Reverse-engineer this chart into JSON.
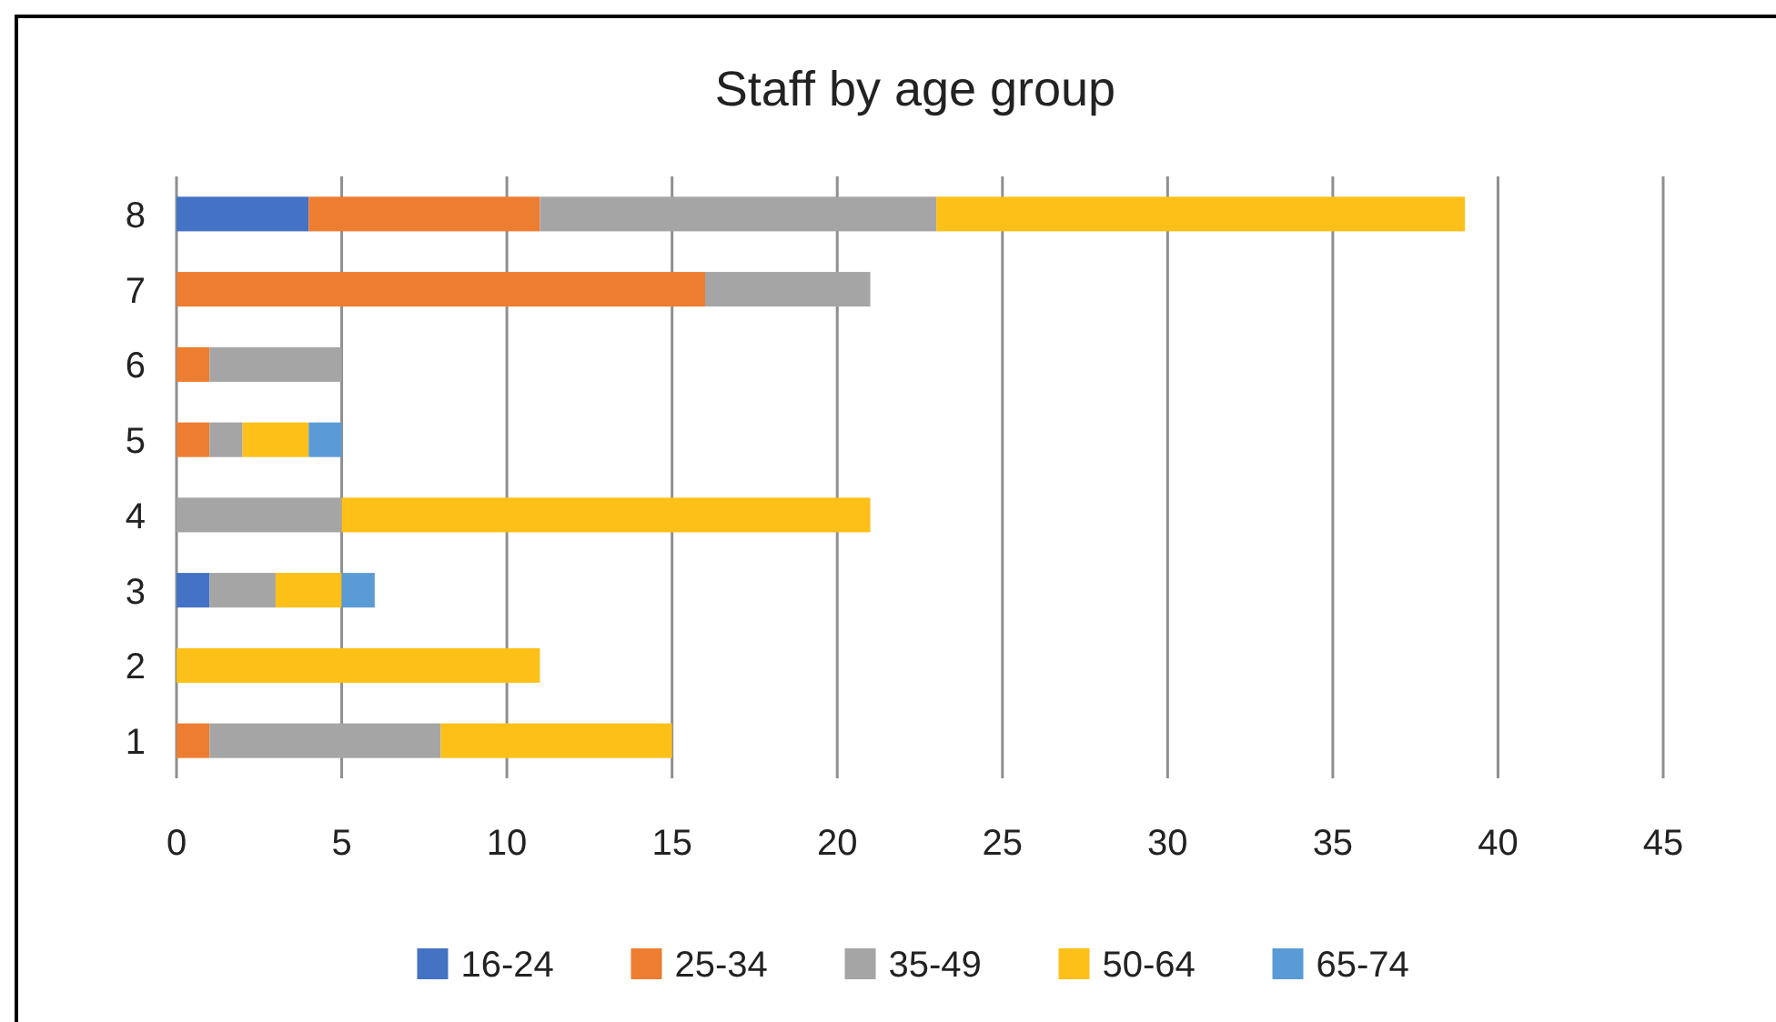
{
  "chart_data": {
    "type": "bar",
    "orientation": "horizontal",
    "stacked": true,
    "title": "Staff by age group",
    "categories": [
      "8",
      "7",
      "6",
      "5",
      "4",
      "3",
      "2",
      "1"
    ],
    "series": [
      {
        "name": "16-24",
        "color": "#4472c4",
        "values": [
          4,
          0,
          0,
          0,
          0,
          1,
          0,
          0
        ]
      },
      {
        "name": "25-34",
        "color": "#ed7d31",
        "values": [
          7,
          16,
          1,
          1,
          0,
          0,
          0,
          1
        ]
      },
      {
        "name": "35-49",
        "color": "#a5a5a5",
        "values": [
          12,
          5,
          4,
          1,
          5,
          2,
          0,
          7
        ]
      },
      {
        "name": "50-64",
        "color": "#fdc018",
        "values": [
          16,
          0,
          0,
          2,
          16,
          2,
          11,
          7
        ]
      },
      {
        "name": "65-74",
        "color": "#5b9bd5",
        "values": [
          0,
          0,
          0,
          1,
          0,
          1,
          0,
          0
        ]
      }
    ],
    "xlim": [
      0,
      45
    ],
    "xticks": [
      0,
      5,
      10,
      15,
      20,
      25,
      30,
      35,
      40,
      45
    ],
    "grid": "x",
    "legend": "bottom"
  }
}
